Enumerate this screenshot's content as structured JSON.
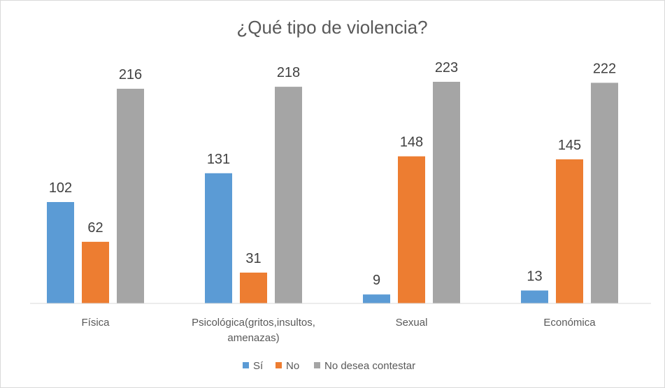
{
  "chart_data": {
    "type": "bar",
    "title": "¿Qué tipo de violencia?",
    "categories": [
      [
        "Física"
      ],
      [
        "Psicológica(gritos,insultos,",
        "amenazas)"
      ],
      [
        "Sexual"
      ],
      [
        "Económica"
      ]
    ],
    "series": [
      {
        "name": "Sí",
        "color": "#5b9bd5",
        "values": [
          102,
          131,
          9,
          13
        ]
      },
      {
        "name": "No",
        "color": "#ed7d31",
        "values": [
          62,
          31,
          148,
          145
        ]
      },
      {
        "name": "No desea contestar",
        "color": "#a5a5a5",
        "values": [
          216,
          218,
          223,
          222
        ]
      }
    ],
    "xlabel": "",
    "ylabel": "",
    "ylim": [
      0,
      223
    ],
    "grid": false,
    "legend": "bottom-center",
    "data_labels": true
  }
}
